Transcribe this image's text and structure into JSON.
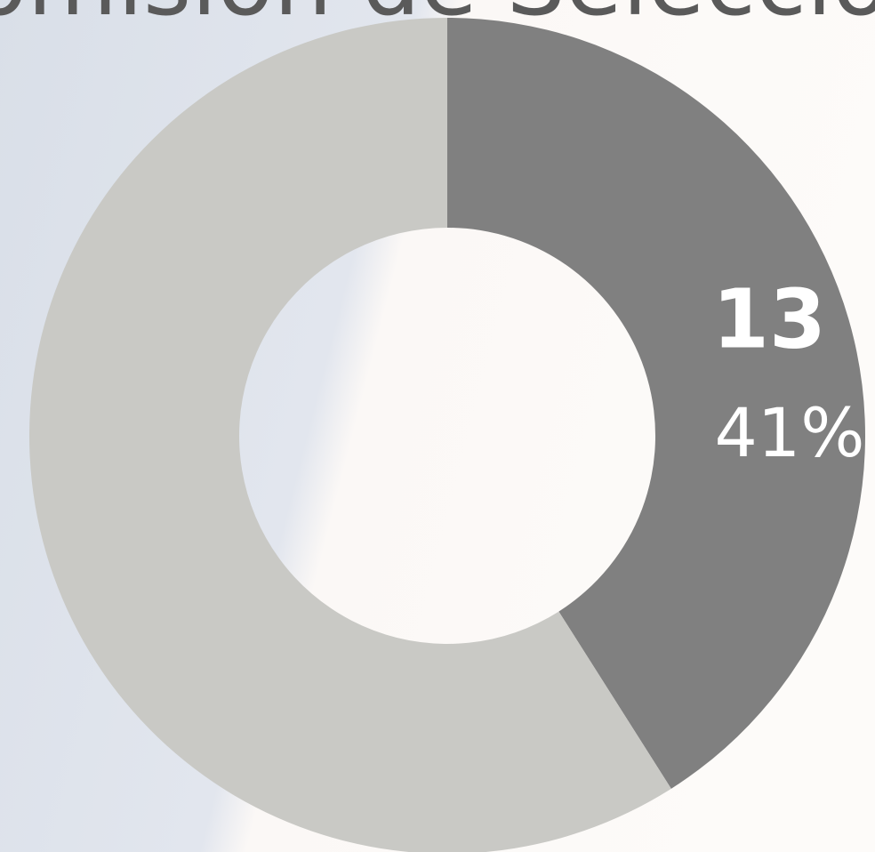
{
  "chart_data": {
    "type": "donut",
    "title": "Comisión de Selección",
    "series": [
      {
        "values": [
          41,
          59
        ],
        "colors": [
          "#808080",
          "#c9c9c5"
        ],
        "value_labels": [
          "41%",
          null
        ],
        "counts": [
          13,
          null
        ]
      }
    ]
  }
}
